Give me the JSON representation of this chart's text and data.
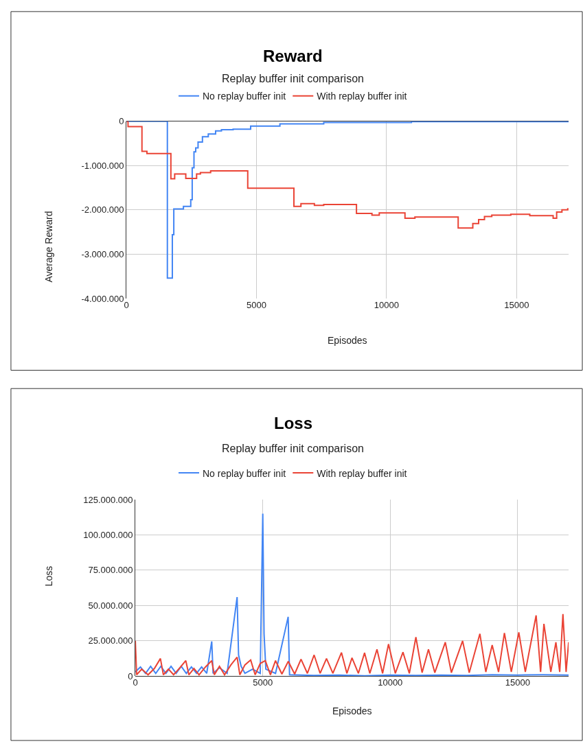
{
  "chart_data": [
    {
      "type": "step",
      "title": "Reward",
      "subtitle": "Replay buffer init comparison",
      "xlabel": "Episodes",
      "ylabel": "Average Reward",
      "legend": "top",
      "grid": true,
      "xlim": [
        0,
        17000
      ],
      "xticks": [
        0,
        5000,
        10000,
        15000
      ],
      "ylim": [
        -4000000,
        0
      ],
      "yticks": [
        {
          "value": -4000000,
          "label": "-4.000.000"
        },
        {
          "value": -3000000,
          "label": "-3.000.000"
        },
        {
          "value": -2000000,
          "label": "-2.000.000"
        },
        {
          "value": -1000000,
          "label": "-1.000.000"
        },
        0
      ],
      "series": [
        {
          "name": "No replay buffer init",
          "color": "#4285f4",
          "x": [
            0,
            1573,
            1764,
            1820,
            2191,
            2472,
            2528,
            2596,
            2663,
            2753,
            2921,
            3146,
            3427,
            3652,
            4101,
            4775,
            5900,
            7584,
            10955,
            17000
          ],
          "values": [
            0,
            -3540000,
            -2560000,
            -1980000,
            -1920000,
            -1770000,
            -1050000,
            -690000,
            -600000,
            -470000,
            -350000,
            -290000,
            -220000,
            -190000,
            -180000,
            -110000,
            -60000,
            -30000,
            -10000,
            -10000
          ]
        },
        {
          "name": "With replay buffer init",
          "color": "#ea4335",
          "x": [
            0,
            60,
            596,
            787,
            1708,
            1854,
            2281,
            2697,
            2843,
            3236,
            4663,
            6438,
            6708,
            7225,
            7584,
            8843,
            9438,
            9719,
            10708,
            11090,
            12753,
            13315,
            13539,
            13764,
            14045,
            14775,
            15506,
            16404,
            16539,
            16742,
            16966
          ],
          "values": [
            0,
            -120000,
            -680000,
            -730000,
            -1300000,
            -1190000,
            -1290000,
            -1190000,
            -1160000,
            -1120000,
            -1510000,
            -1920000,
            -1860000,
            -1900000,
            -1880000,
            -2080000,
            -2120000,
            -2070000,
            -2190000,
            -2160000,
            -2410000,
            -2310000,
            -2220000,
            -2150000,
            -2120000,
            -2100000,
            -2130000,
            -2190000,
            -2050000,
            -2000000,
            -1960000
          ]
        }
      ]
    },
    {
      "type": "line",
      "title": "Loss",
      "subtitle": "Replay buffer init comparison",
      "xlabel": "Episodes",
      "ylabel": "Loss",
      "legend": "top",
      "grid": true,
      "xlim": [
        0,
        17000
      ],
      "xticks": [
        0,
        5000,
        10000,
        15000
      ],
      "ylim": [
        0,
        125000000
      ],
      "yticks": [
        0,
        {
          "value": 25000000,
          "label": "25.000.000"
        },
        {
          "value": 50000000,
          "label": "50.000.000"
        },
        {
          "value": 75000000,
          "label": "75.000.000"
        },
        {
          "value": 100000000,
          "label": "100.000.000"
        },
        {
          "value": 125000000,
          "label": "125.000.000"
        }
      ],
      "series": [
        {
          "name": "No replay buffer init",
          "color": "#4285f4",
          "x": [
            0,
            200,
            400,
            600,
            800,
            1000,
            1200,
            1400,
            1600,
            1800,
            2000,
            2200,
            2400,
            2600,
            2800,
            2998,
            3050,
            3300,
            3600,
            3993,
            4050,
            4150,
            4300,
            4600,
            4900,
            5000,
            5050,
            5120,
            5500,
            5995,
            6050,
            7000,
            8000,
            9000,
            10000,
            11000,
            12000,
            13000,
            14000,
            15000,
            16000,
            17000
          ],
          "values": [
            3000000,
            6500000,
            2000000,
            7000000,
            2000000,
            7000000,
            2000000,
            7000000,
            2000000,
            7000000,
            2000000,
            6500000,
            2000000,
            6500000,
            2000000,
            24600000,
            2000000,
            6000000,
            2000000,
            56000000,
            15000000,
            7000000,
            2000000,
            5000000,
            2000000,
            115000000,
            30000000,
            5000000,
            2000000,
            42000000,
            1000000,
            500000,
            800000,
            300000,
            800000,
            500000,
            800000,
            500000,
            1000000,
            800000,
            1000000,
            800000
          ]
        },
        {
          "name": "With replay buffer init",
          "color": "#ea4335",
          "x": [
            0,
            50,
            250,
            500,
            750,
            984,
            1100,
            1300,
            1500,
            1750,
            1980,
            2100,
            2300,
            2500,
            2750,
            2998,
            3100,
            3300,
            3500,
            3750,
            3993,
            4100,
            4300,
            4525,
            4700,
            4900,
            5100,
            5300,
            5500,
            5750,
            6000,
            6250,
            6500,
            6750,
            7014,
            7250,
            7500,
            7750,
            8088,
            8300,
            8500,
            8750,
            8993,
            9200,
            9480,
            9700,
            9932,
            10200,
            10500,
            10750,
            11007,
            11250,
            11500,
            11750,
            12161,
            12400,
            12840,
            13100,
            13518,
            13750,
            14000,
            14250,
            14480,
            14750,
            15045,
            15300,
            15724,
            15900,
            16030,
            16300,
            16500,
            16650,
            16776,
            16900,
            17000
          ],
          "values": [
            25000000,
            1000000,
            5000000,
            1000000,
            5500000,
            12500000,
            1000000,
            5000000,
            1000000,
            6000000,
            11000000,
            1000000,
            5500000,
            1000000,
            6500000,
            11000000,
            1000000,
            7000000,
            1000000,
            8000000,
            13500000,
            1000000,
            8000000,
            11500000,
            1000000,
            9000000,
            11000000,
            1000000,
            11000000,
            1500000,
            10500000,
            1500000,
            12000000,
            2000000,
            15000000,
            2000000,
            12500000,
            2000000,
            16700000,
            2000000,
            13000000,
            2000000,
            16500000,
            2000000,
            19000000,
            2000000,
            22700000,
            2000000,
            17000000,
            2000000,
            27600000,
            2500000,
            19000000,
            2500000,
            24000000,
            2500000,
            25000000,
            2500000,
            30000000,
            3000000,
            22000000,
            3000000,
            30600000,
            3000000,
            31000000,
            3000000,
            43000000,
            3000000,
            37000000,
            3000000,
            24000000,
            3000000,
            44000000,
            3000000,
            24000000
          ]
        }
      ]
    }
  ]
}
